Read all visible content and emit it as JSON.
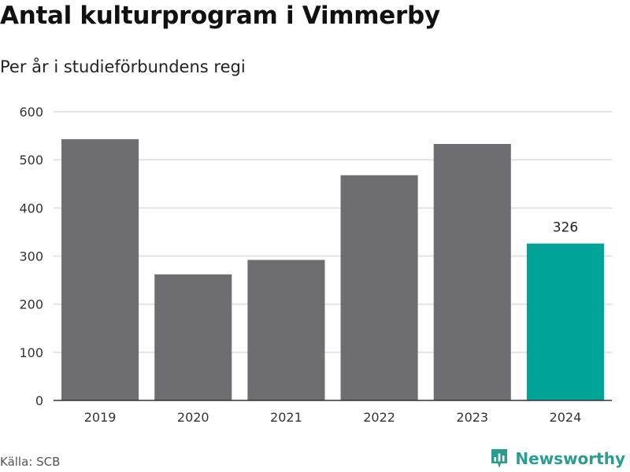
{
  "header": {
    "title": "Antal kulturprogram i Vimmerby",
    "subtitle": "Per år i studieförbundens regi"
  },
  "footer": {
    "source": "Källa: SCB",
    "brand": "Newsworthy"
  },
  "colors": {
    "bar_default": "#6e6d72",
    "bar_highlight": "#00a398",
    "gridline": "#dcdcdc",
    "axis": "#333333",
    "brand": "#2a9d8f"
  },
  "chart_data": {
    "type": "bar",
    "title": "Antal kulturprogram i Vimmerby",
    "subtitle": "Per år i studieförbundens regi",
    "categories": [
      "2019",
      "2020",
      "2021",
      "2022",
      "2023",
      "2024"
    ],
    "values": [
      543,
      262,
      292,
      468,
      533,
      326
    ],
    "highlight_index": 5,
    "data_labels": [
      null,
      null,
      null,
      null,
      null,
      "326"
    ],
    "ylim": [
      0,
      600
    ],
    "yticks": [
      0,
      100,
      200,
      300,
      400,
      500,
      600
    ],
    "grid": true,
    "legend": "none"
  }
}
